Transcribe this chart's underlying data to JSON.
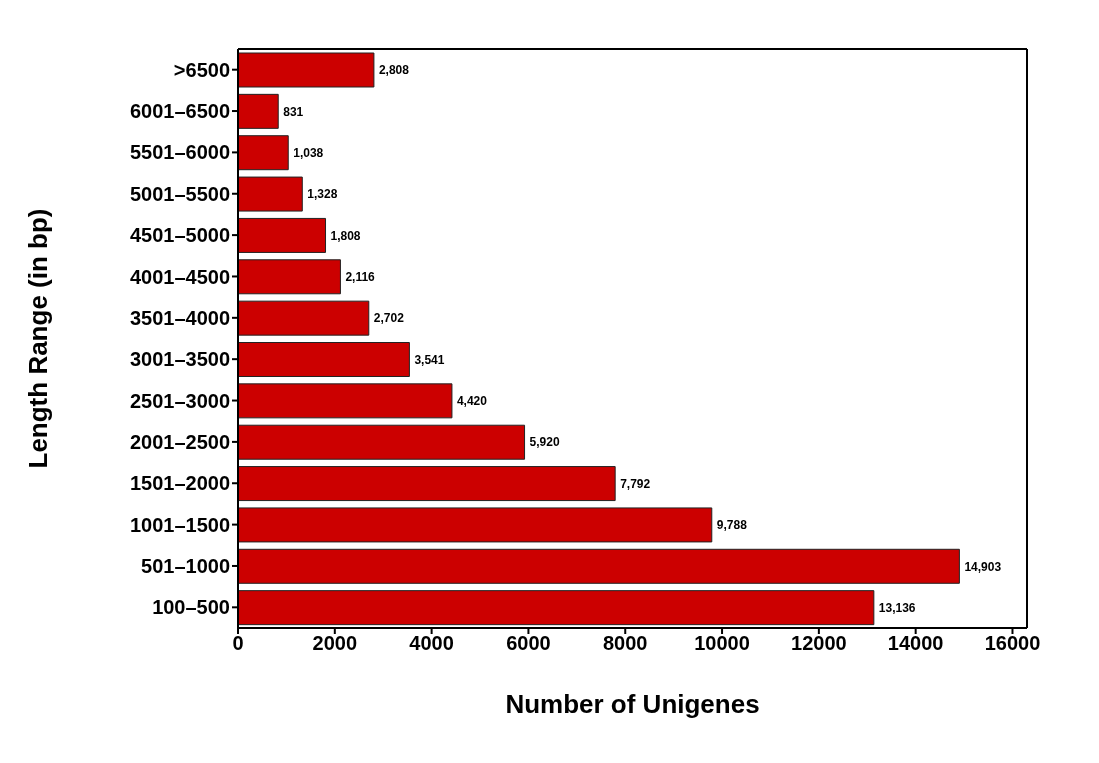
{
  "chart_data": {
    "type": "bar",
    "orientation": "horizontal",
    "categories": [
      ">6500",
      "6001–6500",
      "5501–6000",
      "5001–5500",
      "4501–5000",
      "4001–4500",
      "3501–4000",
      "3001–3500",
      "2501–3000",
      "2001–2500",
      "1501–2000",
      "1001–1500",
      "501–1000",
      "100–500"
    ],
    "values": [
      2808,
      831,
      1038,
      1328,
      1808,
      2116,
      2702,
      3541,
      4420,
      5920,
      7792,
      9788,
      14903,
      13136
    ],
    "value_labels": [
      "2,808",
      "831",
      "1,038",
      "1,328",
      "1,808",
      "2,116",
      "2,702",
      "3,541",
      "4,420",
      "5,920",
      "7,792",
      "9,788",
      "14,903",
      "13,136"
    ],
    "color": "#cc0000",
    "xlim": [
      0,
      16300
    ],
    "xticks": [
      0,
      2000,
      4000,
      6000,
      8000,
      10000,
      12000,
      14000,
      16000
    ],
    "xlabel": "Number of Unigenes",
    "ylabel": "Length Range (in bp)"
  }
}
